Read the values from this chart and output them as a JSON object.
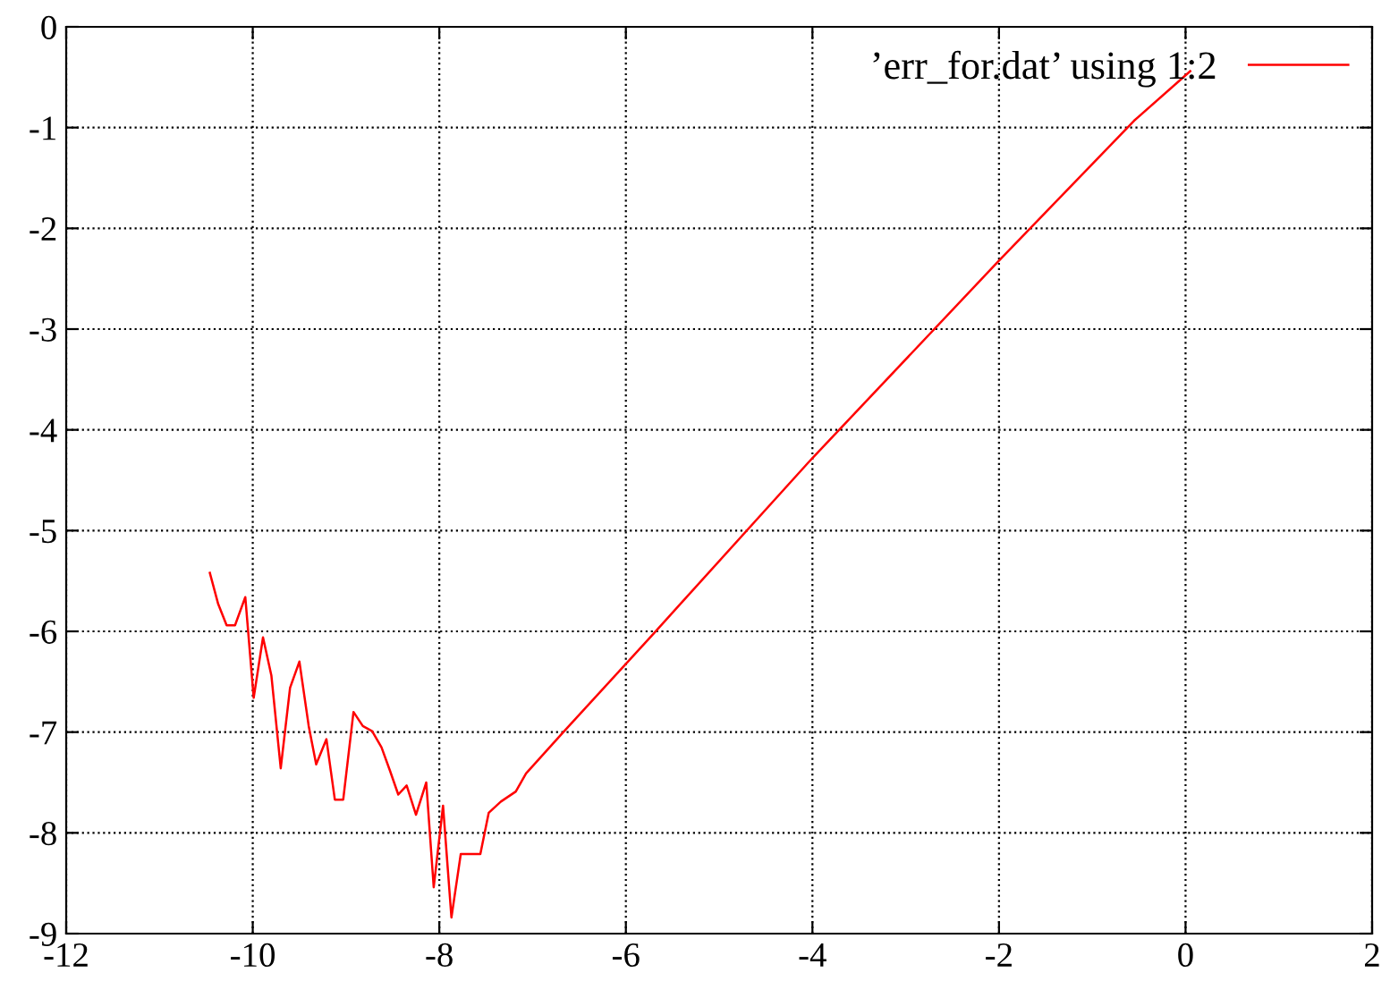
{
  "chart_data": {
    "type": "line",
    "xlim": [
      -12,
      2
    ],
    "ylim": [
      -9,
      0
    ],
    "xticks": [
      -12,
      -10,
      -8,
      -6,
      -4,
      -2,
      0,
      2
    ],
    "yticks": [
      -9,
      -8,
      -7,
      -6,
      -5,
      -4,
      -3,
      -2,
      -1,
      0
    ],
    "grid": true,
    "legend": "top right",
    "series": [
      {
        "name": "’err_for.dat’ using 1:2",
        "color": "#ff0000",
        "line_style": "solid",
        "marker": "none",
        "x": [
          -10.46,
          -10.37,
          -10.28,
          -10.19,
          -10.08,
          -9.99,
          -9.89,
          -9.8,
          -9.7,
          -9.6,
          -9.5,
          -9.4,
          -9.32,
          -9.21,
          -9.12,
          -9.03,
          -8.92,
          -8.82,
          -8.72,
          -8.62,
          -8.53,
          -8.44,
          -8.35,
          -8.25,
          -8.14,
          -8.06,
          -7.96,
          -7.87,
          -7.77,
          -7.56,
          -7.47,
          -7.34,
          -7.18,
          -7.07,
          -6.67,
          -5.71,
          -4.04,
          -2.02,
          -0.55,
          0.05
        ],
        "values": [
          -5.42,
          -5.73,
          -5.94,
          -5.94,
          -5.66,
          -6.66,
          -6.06,
          -6.44,
          -7.36,
          -6.56,
          -6.3,
          -6.94,
          -7.32,
          -7.07,
          -7.67,
          -7.67,
          -6.8,
          -6.94,
          -6.99,
          -7.15,
          -7.38,
          -7.62,
          -7.53,
          -7.82,
          -7.5,
          -8.54,
          -7.73,
          -8.84,
          -8.21,
          -8.21,
          -7.8,
          -7.69,
          -7.59,
          -7.41,
          -7.0,
          -6.03,
          -4.32,
          -2.34,
          -0.93,
          -0.44
        ]
      }
    ]
  }
}
